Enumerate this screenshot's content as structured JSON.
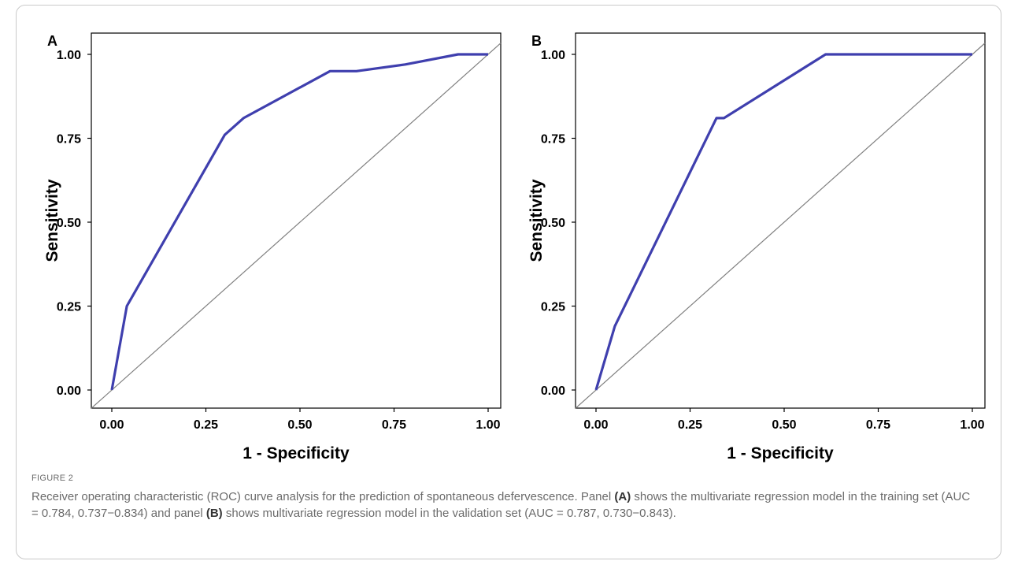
{
  "figure_label": "FIGURE 2",
  "caption": {
    "p1": "Receiver operating characteristic (ROC) curve analysis for the prediction of spontaneous defervescence. Panel ",
    "ref_a": "(A)",
    "p2": " shows the multivariate regression model in the training set (AUC = 0.784, 0.737−0.834) and panel ",
    "ref_b": "(B)",
    "p3": " shows multivariate regression model in the validation set (AUC = 0.787, 0.730−0.843)."
  },
  "colors": {
    "roc_line": "#3f3fae",
    "reference_line": "#808080",
    "axis": "#000000"
  },
  "chart_data": [
    {
      "panel": "A",
      "type": "line",
      "title": "A",
      "xlabel": "1 - Specificity",
      "ylabel": "Sensitivity",
      "xlim": [
        0,
        1
      ],
      "ylim": [
        0,
        1
      ],
      "tick_values": [
        0,
        0.25,
        0.5,
        0.75,
        1
      ],
      "tick_labels": [
        "0.00",
        "0.25",
        "0.50",
        "0.75",
        "1.00"
      ],
      "grid": false,
      "series": [
        {
          "x": [
            0,
            0.04,
            0.3,
            0.35,
            0.58,
            0.65,
            0.78,
            0.92,
            1.0
          ],
          "y": [
            0,
            0.25,
            0.76,
            0.81,
            0.95,
            0.95,
            0.97,
            1.0,
            1.0
          ]
        }
      ],
      "reference_line": {
        "x": [
          0,
          1
        ],
        "y": [
          0,
          1
        ]
      }
    },
    {
      "panel": "B",
      "type": "line",
      "title": "B",
      "xlabel": "1 - Specificity",
      "ylabel": "Sensitivity",
      "xlim": [
        0,
        1
      ],
      "ylim": [
        0,
        1
      ],
      "tick_values": [
        0,
        0.25,
        0.5,
        0.75,
        1
      ],
      "tick_labels": [
        "0.00",
        "0.25",
        "0.50",
        "0.75",
        "1.00"
      ],
      "grid": false,
      "series": [
        {
          "x": [
            0,
            0.05,
            0.32,
            0.34,
            0.61,
            1.0
          ],
          "y": [
            0,
            0.19,
            0.81,
            0.81,
            1.0,
            1.0
          ]
        }
      ],
      "reference_line": {
        "x": [
          0,
          1
        ],
        "y": [
          0,
          1
        ]
      }
    }
  ]
}
